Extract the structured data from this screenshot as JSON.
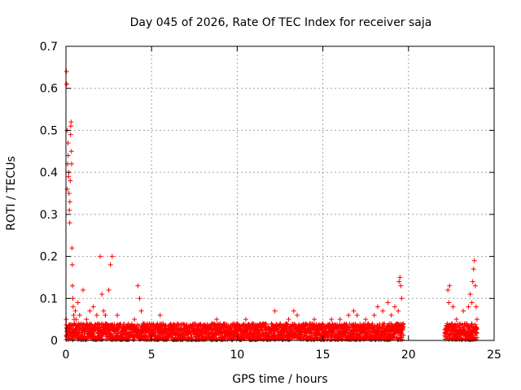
{
  "chart_data": {
    "type": "scatter",
    "title": "Day 045 of 2026, Rate Of TEC Index for receiver saja",
    "xlabel": "GPS time / hours",
    "ylabel": "ROTI / TECUs",
    "xlim": [
      0,
      25
    ],
    "ylim": [
      0,
      0.7
    ],
    "x_ticks": [
      0,
      5,
      10,
      15,
      20,
      25
    ],
    "x_tick_labels": [
      "0",
      "5",
      "10",
      "15",
      "20",
      "25"
    ],
    "y_ticks": [
      0,
      0.1,
      0.2,
      0.3,
      0.4,
      0.5,
      0.6,
      0.7
    ],
    "y_tick_labels": [
      "0",
      "0.1",
      "0.2",
      "0.3",
      "0.4",
      "0.5",
      "0.6",
      "0.7"
    ],
    "grid": true,
    "marker": "plus",
    "color": "#ff0000",
    "data_gaps_hours": [
      [
        19.7,
        22.1
      ]
    ],
    "series": [
      {
        "x": [
          0.02,
          0.03,
          0.05,
          0.07,
          0.08,
          0.1,
          0.12,
          0.13,
          0.15,
          0.17,
          0.18,
          0.2,
          0.22,
          0.23,
          0.25,
          0.27,
          0.28,
          0.3,
          0.32,
          0.33,
          0.35,
          0.37,
          0.38,
          0.4,
          0.42,
          0.45,
          0.48,
          0.5,
          0.55,
          0.6,
          0.7,
          0.8,
          0.9,
          1.0,
          1.2,
          1.4,
          1.6,
          1.8,
          2.0,
          2.1,
          2.2,
          2.3,
          2.5,
          2.6,
          2.7,
          3.0,
          3.5,
          4.0,
          4.2,
          4.3,
          4.4,
          4.5,
          5.0,
          5.5,
          6.0,
          6.5,
          7.0,
          7.5,
          8.0,
          8.5,
          8.8,
          9.0,
          9.5,
          10.0,
          10.5,
          11.0,
          11.5,
          12.0,
          12.2,
          12.5,
          13.0,
          13.3,
          13.5,
          14.0,
          14.5,
          15.0,
          15.5,
          16.0,
          16.5,
          16.8,
          17.0,
          17.5,
          18.0,
          18.2,
          18.5,
          18.8,
          19.0,
          19.2,
          19.4,
          19.45,
          19.5,
          19.55,
          19.6,
          22.2,
          22.3,
          22.35,
          22.4,
          22.6,
          22.8,
          23.0,
          23.2,
          23.4,
          23.5,
          23.6,
          23.7,
          23.75,
          23.8,
          23.85,
          23.9,
          23.95,
          24.0
        ],
        "y": [
          0.05,
          0.64,
          0.61,
          0.5,
          0.36,
          0.42,
          0.47,
          0.44,
          0.39,
          0.4,
          0.35,
          0.31,
          0.28,
          0.33,
          0.38,
          0.49,
          0.51,
          0.52,
          0.45,
          0.42,
          0.22,
          0.18,
          0.13,
          0.1,
          0.08,
          0.06,
          0.05,
          0.04,
          0.07,
          0.05,
          0.09,
          0.06,
          0.04,
          0.12,
          0.05,
          0.07,
          0.08,
          0.06,
          0.2,
          0.11,
          0.07,
          0.06,
          0.12,
          0.18,
          0.2,
          0.06,
          0.03,
          0.05,
          0.13,
          0.1,
          0.07,
          0.04,
          0.04,
          0.06,
          0.03,
          0.04,
          0.03,
          0.04,
          0.03,
          0.04,
          0.05,
          0.04,
          0.03,
          0.04,
          0.05,
          0.03,
          0.04,
          0.04,
          0.07,
          0.04,
          0.05,
          0.07,
          0.06,
          0.04,
          0.05,
          0.04,
          0.05,
          0.05,
          0.06,
          0.07,
          0.06,
          0.05,
          0.06,
          0.08,
          0.07,
          0.09,
          0.06,
          0.08,
          0.07,
          0.14,
          0.15,
          0.13,
          0.1,
          0.03,
          0.12,
          0.09,
          0.13,
          0.08,
          0.05,
          0.04,
          0.07,
          0.04,
          0.08,
          0.11,
          0.09,
          0.14,
          0.17,
          0.19,
          0.13,
          0.08,
          0.05
        ]
      }
    ]
  }
}
